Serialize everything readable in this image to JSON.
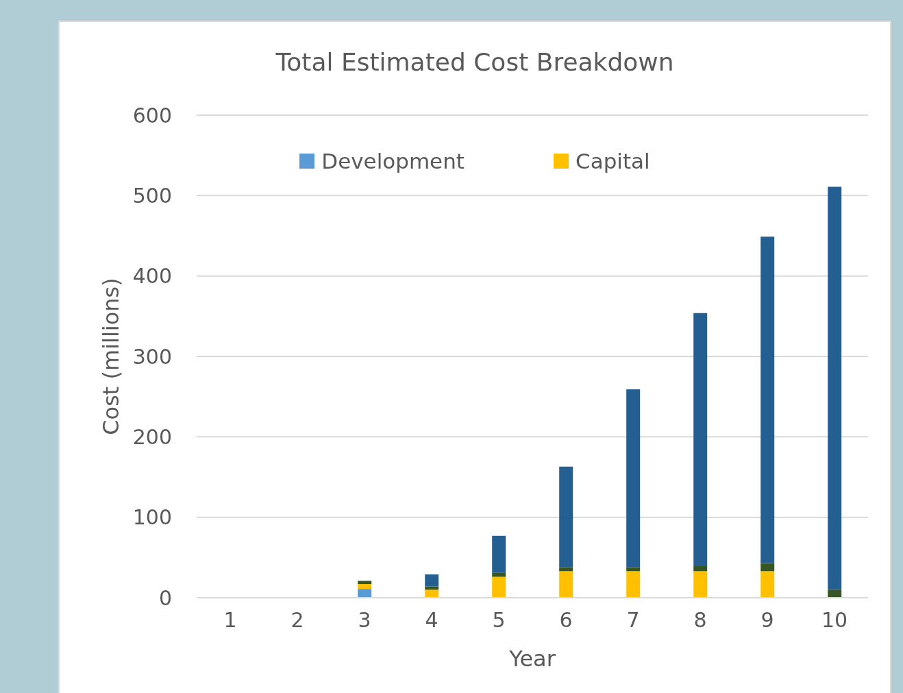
{
  "chart_data": {
    "type": "bar",
    "title": "Total Estimated Cost Breakdown",
    "xlabel": "Year",
    "ylabel": "Cost (millions)",
    "categories": [
      "1",
      "2",
      "3",
      "4",
      "5",
      "6",
      "7",
      "8",
      "9",
      "10"
    ],
    "series": [
      {
        "name": "Development",
        "color": "#5b9bd5",
        "values": [
          0,
          0,
          11,
          0,
          0,
          0,
          0,
          0,
          0,
          0
        ]
      },
      {
        "name": "Capital",
        "color": "#ffc000",
        "values": [
          0,
          0,
          6,
          10,
          26,
          33,
          33,
          33,
          33,
          0
        ]
      },
      {
        "color": "#375623",
        "values": [
          0,
          0,
          4,
          4,
          5,
          5,
          5,
          7,
          10,
          10
        ]
      },
      {
        "color": "#255e91",
        "values": [
          0,
          0,
          0,
          15,
          46,
          125,
          221,
          314,
          406,
          501
        ]
      }
    ],
    "stacked": true,
    "ylim": [
      0,
      600
    ],
    "yticks": [
      0,
      100,
      200,
      300,
      400,
      500,
      600
    ],
    "grid": "y",
    "legend": "top"
  }
}
